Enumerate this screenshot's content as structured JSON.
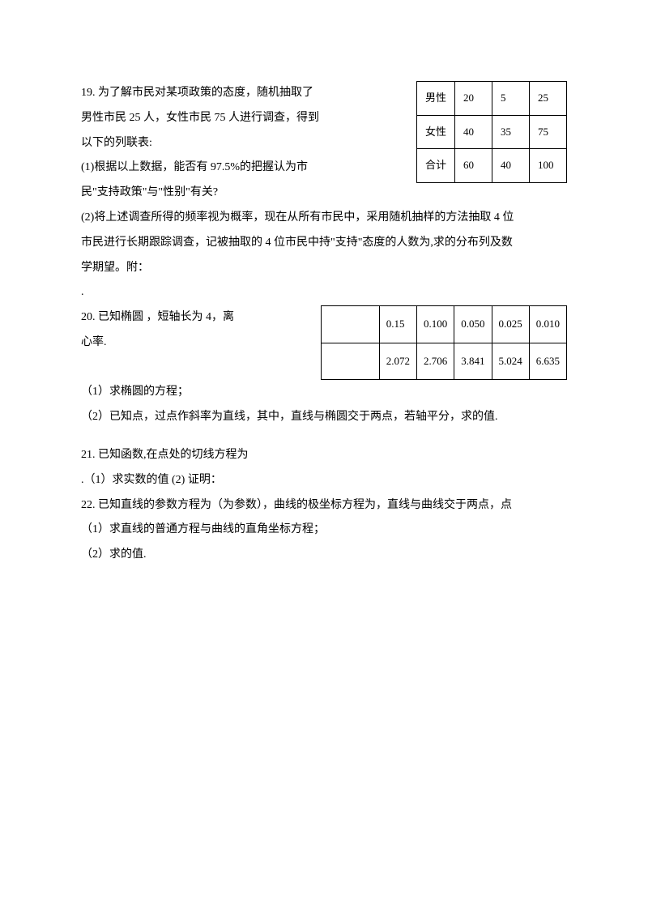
{
  "q19": {
    "line1": "19.  为了解市民对某项政策的态度，随机抽取了",
    "line2": "男性市民 25 人，女性市民 75 人进行调查，得到",
    "line3": "以下的列联表:",
    "line4": " (1)根据以上数据，能否有 97.5%的把握认为市",
    "line5": "民\"支持政策\"与\"性别\"有关?",
    "line6": " (2)将上述调查所得的频率视为概率，现在从所有市民中，采用随机抽样的方法抽取 4 位",
    "line7": "市民进行长期跟踪调查，记被抽取的 4 位市民中持\"支持\"态度的人数为,求的分布列及数",
    "line8": "学期望。附：",
    "table": {
      "rows": [
        [
          "男性",
          "20",
          "5",
          "25"
        ],
        [
          "女性",
          "40",
          "35",
          "75"
        ],
        [
          "合计",
          "60",
          "40",
          "100"
        ]
      ]
    }
  },
  "dot": ".",
  "q20": {
    "line1": "20.  已知椭圆 ，短轴长为 4，离",
    "line2": "心率.",
    "part1": "（1）求椭圆的方程；",
    "part2": "（2）已知点，过点作斜率为直线，其中，直线与椭圆交于两点，若轴平分，求的值.",
    "table": {
      "rows": [
        [
          "",
          "0.15",
          "0.100",
          "0.050",
          "0.025",
          "0.010"
        ],
        [
          "",
          "2.072",
          "2.706",
          "3.841",
          "5.024",
          "6.635"
        ]
      ]
    }
  },
  "q21": {
    "line1": "21.  已知函数,在点处的切线方程为",
    "line2": ".（1）求实数的值   (2) 证明："
  },
  "q22": {
    "line1": "22. 已知直线的参数方程为（为参数），曲线的极坐标方程为，直线与曲线交于两点，点",
    "line2": "（1）求直线的普通方程与曲线的直角坐标方程；",
    "line3": "（2）求的值."
  }
}
